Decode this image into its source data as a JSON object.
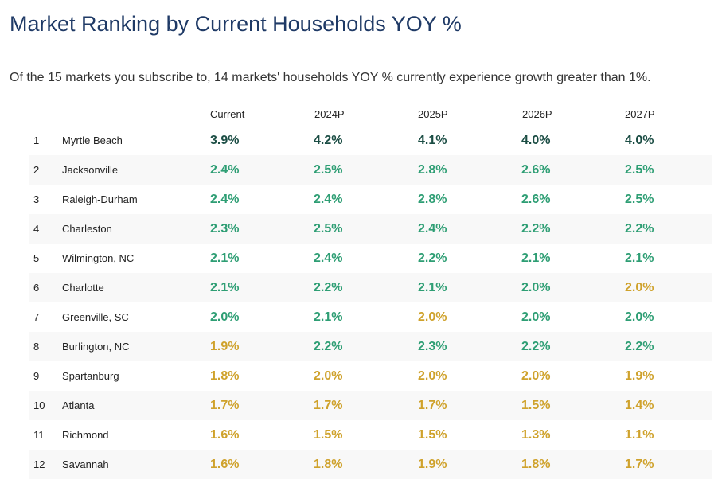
{
  "header": {
    "title": "Market Ranking by Current Households YOY %",
    "subtitle": "Of the 15 markets you subscribe to, 14 markets' households YOY % currently experience growth greater than 1%."
  },
  "colors": {
    "title": "#1f3a66",
    "tier_dark": "#1b4d44",
    "tier_green": "#2e9e74",
    "tier_gold": "#cfa22c",
    "alt_row": "#f8f8f8"
  },
  "table": {
    "columns": [
      "Current",
      "2024P",
      "2025P",
      "2026P",
      "2027P"
    ],
    "rows": [
      {
        "rank": "1",
        "market": "Myrtle Beach",
        "values": [
          "3.9%",
          "4.2%",
          "4.1%",
          "4.0%",
          "4.0%"
        ],
        "tiers": [
          "dark",
          "dark",
          "dark",
          "dark",
          "dark"
        ]
      },
      {
        "rank": "2",
        "market": "Jacksonville",
        "values": [
          "2.4%",
          "2.5%",
          "2.8%",
          "2.6%",
          "2.5%"
        ],
        "tiers": [
          "green",
          "green",
          "green",
          "green",
          "green"
        ]
      },
      {
        "rank": "3",
        "market": "Raleigh-Durham",
        "values": [
          "2.4%",
          "2.4%",
          "2.8%",
          "2.6%",
          "2.5%"
        ],
        "tiers": [
          "green",
          "green",
          "green",
          "green",
          "green"
        ]
      },
      {
        "rank": "4",
        "market": "Charleston",
        "values": [
          "2.3%",
          "2.5%",
          "2.4%",
          "2.2%",
          "2.2%"
        ],
        "tiers": [
          "green",
          "green",
          "green",
          "green",
          "green"
        ]
      },
      {
        "rank": "5",
        "market": "Wilmington, NC",
        "values": [
          "2.1%",
          "2.4%",
          "2.2%",
          "2.1%",
          "2.1%"
        ],
        "tiers": [
          "green",
          "green",
          "green",
          "green",
          "green"
        ]
      },
      {
        "rank": "6",
        "market": "Charlotte",
        "values": [
          "2.1%",
          "2.2%",
          "2.1%",
          "2.0%",
          "2.0%"
        ],
        "tiers": [
          "green",
          "green",
          "green",
          "green",
          "gold"
        ]
      },
      {
        "rank": "7",
        "market": "Greenville, SC",
        "values": [
          "2.0%",
          "2.1%",
          "2.0%",
          "2.0%",
          "2.0%"
        ],
        "tiers": [
          "green",
          "green",
          "gold",
          "green",
          "green"
        ]
      },
      {
        "rank": "8",
        "market": "Burlington, NC",
        "values": [
          "1.9%",
          "2.2%",
          "2.3%",
          "2.2%",
          "2.2%"
        ],
        "tiers": [
          "gold",
          "green",
          "green",
          "green",
          "green"
        ]
      },
      {
        "rank": "9",
        "market": "Spartanburg",
        "values": [
          "1.8%",
          "2.0%",
          "2.0%",
          "2.0%",
          "1.9%"
        ],
        "tiers": [
          "gold",
          "gold",
          "gold",
          "gold",
          "gold"
        ]
      },
      {
        "rank": "10",
        "market": "Atlanta",
        "values": [
          "1.7%",
          "1.7%",
          "1.7%",
          "1.5%",
          "1.4%"
        ],
        "tiers": [
          "gold",
          "gold",
          "gold",
          "gold",
          "gold"
        ]
      },
      {
        "rank": "11",
        "market": "Richmond",
        "values": [
          "1.6%",
          "1.5%",
          "1.5%",
          "1.3%",
          "1.1%"
        ],
        "tiers": [
          "gold",
          "gold",
          "gold",
          "gold",
          "gold"
        ]
      },
      {
        "rank": "12",
        "market": "Savannah",
        "values": [
          "1.6%",
          "1.8%",
          "1.9%",
          "1.8%",
          "1.7%"
        ],
        "tiers": [
          "gold",
          "gold",
          "gold",
          "gold",
          "gold"
        ]
      }
    ]
  }
}
